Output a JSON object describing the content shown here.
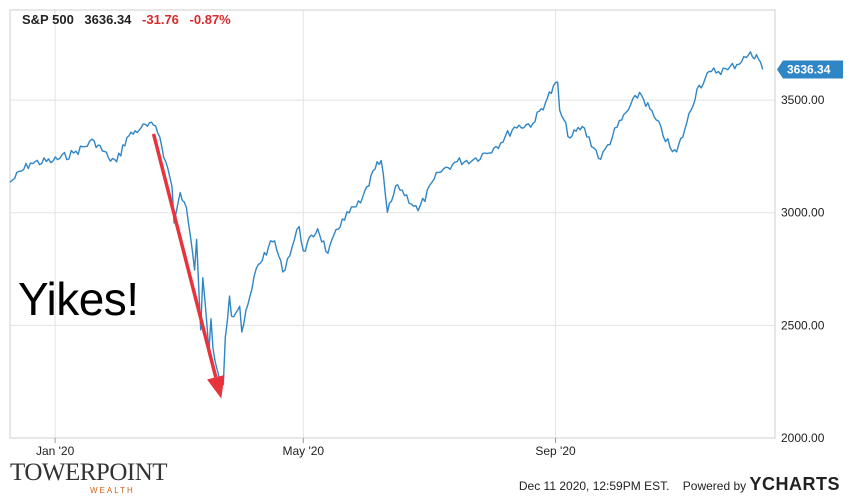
{
  "header": {
    "symbol": "S&P 500",
    "price": "3636.34",
    "change": "-31.76",
    "change_pct": "-0.87%"
  },
  "annotation": {
    "text": "Yikes!"
  },
  "footer": {
    "logo_text": "TOWERPOINT",
    "logo_subtext": "WEALTH",
    "timestamp": "Dec 11 2020, 12:59PM EST.",
    "powered_by": "Powered by",
    "brand": "YCHARTS"
  },
  "colors": {
    "line": "#2f86c6",
    "arrow": "#e8333d",
    "grid": "#e3e3e3",
    "badge": "#2f86c6"
  },
  "chart_data": {
    "type": "line",
    "series": [
      {
        "points": [
          [
            "2019-12-10",
            3135
          ],
          [
            "2019-12-20",
            3221
          ],
          [
            "2019-12-31",
            3230
          ],
          [
            "2020-01-10",
            3265
          ],
          [
            "2020-01-20",
            3320
          ],
          [
            "2020-01-27",
            3244
          ],
          [
            "2020-01-31",
            3226
          ],
          [
            "2020-02-05",
            3334
          ],
          [
            "2020-02-12",
            3379
          ],
          [
            "2020-02-19",
            3386
          ],
          [
            "2020-02-21",
            3337
          ],
          [
            "2020-02-24",
            3225
          ],
          [
            "2020-02-27",
            3116
          ],
          [
            "2020-02-28",
            2954
          ],
          [
            "2020-03-02",
            3090
          ],
          [
            "2020-03-05",
            3023
          ],
          [
            "2020-03-09",
            2746
          ],
          [
            "2020-03-10",
            2882
          ],
          [
            "2020-03-12",
            2480
          ],
          [
            "2020-03-13",
            2711
          ],
          [
            "2020-03-16",
            2386
          ],
          [
            "2020-03-17",
            2529
          ],
          [
            "2020-03-18",
            2398
          ],
          [
            "2020-03-20",
            2304
          ],
          [
            "2020-03-23",
            2237
          ],
          [
            "2020-03-24",
            2447
          ],
          [
            "2020-03-26",
            2630
          ],
          [
            "2020-03-27",
            2541
          ],
          [
            "2020-03-31",
            2585
          ],
          [
            "2020-04-01",
            2470
          ],
          [
            "2020-04-06",
            2663
          ],
          [
            "2020-04-08",
            2750
          ],
          [
            "2020-04-14",
            2846
          ],
          [
            "2020-04-17",
            2875
          ],
          [
            "2020-04-21",
            2737
          ],
          [
            "2020-04-29",
            2939
          ],
          [
            "2020-05-01",
            2831
          ],
          [
            "2020-05-08",
            2929
          ],
          [
            "2020-05-13",
            2820
          ],
          [
            "2020-05-20",
            2972
          ],
          [
            "2020-05-29",
            3044
          ],
          [
            "2020-06-05",
            3194
          ],
          [
            "2020-06-08",
            3232
          ],
          [
            "2020-06-11",
            3002
          ],
          [
            "2020-06-16",
            3124
          ],
          [
            "2020-06-26",
            3009
          ],
          [
            "2020-07-06",
            3179
          ],
          [
            "2020-07-15",
            3227
          ],
          [
            "2020-07-23",
            3236
          ],
          [
            "2020-08-03",
            3294
          ],
          [
            "2020-08-12",
            3380
          ],
          [
            "2020-08-21",
            3397
          ],
          [
            "2020-08-28",
            3508
          ],
          [
            "2020-09-02",
            3580
          ],
          [
            "2020-09-03",
            3455
          ],
          [
            "2020-09-08",
            3332
          ],
          [
            "2020-09-14",
            3383
          ],
          [
            "2020-09-23",
            3237
          ],
          [
            "2020-10-01",
            3380
          ],
          [
            "2020-10-12",
            3534
          ],
          [
            "2020-10-19",
            3427
          ],
          [
            "2020-10-28",
            3271
          ],
          [
            "2020-10-30",
            3270
          ],
          [
            "2020-11-03",
            3369
          ],
          [
            "2020-11-09",
            3550
          ],
          [
            "2020-11-16",
            3627
          ],
          [
            "2020-11-24",
            3635
          ],
          [
            "2020-12-04",
            3699
          ],
          [
            "2020-12-08",
            3702
          ],
          [
            "2020-12-10",
            3668
          ],
          [
            "2020-12-11",
            3636
          ]
        ]
      }
    ],
    "xticks": [
      {
        "label": "Jan '20",
        "date": "2020-01-01"
      },
      {
        "label": "May '20",
        "date": "2020-05-01"
      },
      {
        "label": "Sep '20",
        "date": "2020-09-01"
      }
    ],
    "yticks": [
      "2000.00",
      "2500.00",
      "3000.00",
      "3500.00"
    ],
    "ylim": [
      2000,
      3900
    ],
    "xlim": [
      "2019-12-10",
      "2020-12-17"
    ],
    "grid": true,
    "last_value_label": "3636.34",
    "arrow": {
      "from": [
        "2020-02-18",
        3350
      ],
      "to": [
        "2020-03-22",
        2175
      ]
    }
  }
}
